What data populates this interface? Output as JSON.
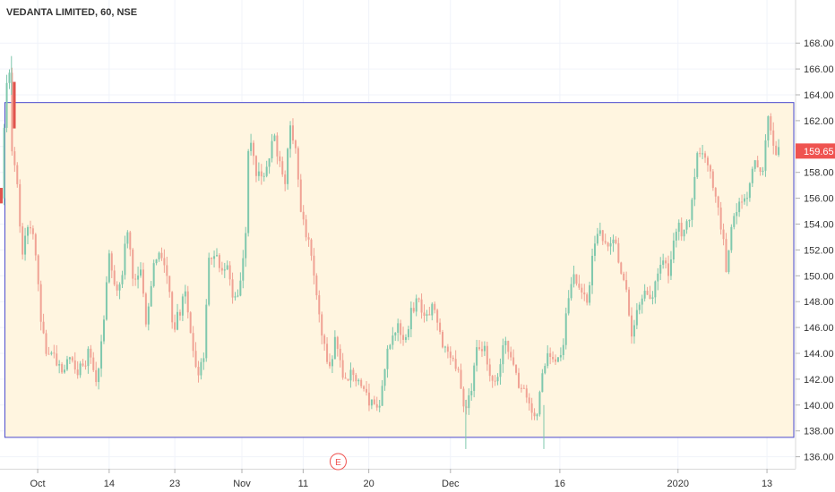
{
  "chart_data": {
    "type": "candlestick",
    "title": "VEDANTA LIMITED, 60, NSE",
    "ylim": [
      135,
      169
    ],
    "y_ticks": [
      136,
      138,
      140,
      142,
      144,
      146,
      148,
      150,
      152,
      154,
      156,
      158,
      160,
      162,
      164,
      166,
      168
    ],
    "y_tick_labels": [
      "136.00",
      "138.00",
      "140.00",
      "142.00",
      "144.00",
      "146.00",
      "148.00",
      "150.00",
      "152.00",
      "154.00",
      "156.00",
      "158.00",
      "160.00",
      "162.00",
      "164.00",
      "166.00",
      "168.00"
    ],
    "x_ticks": [
      {
        "label": "Oct",
        "x": 4.8
      },
      {
        "label": "14",
        "x": 14.6
      },
      {
        "label": "23",
        "x": 23.6
      },
      {
        "label": "Nov",
        "x": 32.8
      },
      {
        "label": "11",
        "x": 41.2
      },
      {
        "label": "20",
        "x": 50.2
      },
      {
        "label": "Dec",
        "x": 61.4
      },
      {
        "label": "16",
        "x": 76.4
      },
      {
        "label": "2020",
        "x": 92.6
      },
      {
        "label": "13",
        "x": 104.8
      }
    ],
    "x_range": [
      0,
      107
    ],
    "grid": true,
    "current_price": 159.65,
    "current_price_label": "159.65",
    "up_color": "#7fc8ad",
    "down_color": "#f0a294",
    "rectangle": {
      "x_start": 0.3,
      "x_end": 107,
      "y_low": 137.5,
      "y_high": 163.4,
      "border": "#4a4acd",
      "fill": "#fff5e0"
    },
    "event_marker": "E",
    "event_x": 46.0,
    "anchors": [
      [
        0.0,
        156.0
      ],
      [
        0.6,
        162.0
      ],
      [
        1.2,
        166.6
      ],
      [
        1.6,
        160.2
      ],
      [
        2.3,
        157.4
      ],
      [
        3.0,
        151.8
      ],
      [
        4.0,
        154.5
      ],
      [
        4.8,
        152.6
      ],
      [
        5.5,
        146.8
      ],
      [
        6.4,
        144.0
      ],
      [
        7.4,
        143.8
      ],
      [
        8.6,
        142.0
      ],
      [
        9.5,
        144.2
      ],
      [
        10.4,
        142.6
      ],
      [
        11.4,
        143.2
      ],
      [
        12.4,
        144.2
      ],
      [
        13.3,
        141.3
      ],
      [
        14.3,
        147.2
      ],
      [
        15.0,
        152.0
      ],
      [
        15.8,
        148.8
      ],
      [
        16.6,
        149.8
      ],
      [
        17.5,
        153.8
      ],
      [
        18.2,
        149.6
      ],
      [
        19.2,
        150.8
      ],
      [
        20.0,
        146.0
      ],
      [
        21.0,
        151.0
      ],
      [
        21.9,
        152.0
      ],
      [
        22.8,
        150.2
      ],
      [
        23.8,
        145.8
      ],
      [
        24.6,
        147.2
      ],
      [
        25.4,
        148.6
      ],
      [
        26.2,
        145.0
      ],
      [
        27.0,
        142.2
      ],
      [
        27.9,
        143.4
      ],
      [
        28.6,
        151.4
      ],
      [
        29.4,
        151.4
      ],
      [
        30.4,
        150.6
      ],
      [
        31.3,
        150.4
      ],
      [
        32.0,
        148.4
      ],
      [
        32.8,
        149.0
      ],
      [
        33.6,
        152.0
      ],
      [
        34.1,
        160.6
      ],
      [
        35.0,
        158.2
      ],
      [
        36.0,
        157.0
      ],
      [
        36.9,
        159.2
      ],
      [
        37.6,
        160.6
      ],
      [
        38.4,
        158.6
      ],
      [
        39.0,
        157.0
      ],
      [
        39.8,
        161.4
      ],
      [
        40.6,
        160.2
      ],
      [
        41.2,
        155.2
      ],
      [
        41.9,
        153.6
      ],
      [
        42.6,
        151.6
      ],
      [
        43.4,
        148.8
      ],
      [
        44.3,
        144.8
      ],
      [
        45.2,
        142.8
      ],
      [
        46.0,
        145.0
      ],
      [
        46.8,
        142.6
      ],
      [
        47.6,
        142.2
      ],
      [
        48.4,
        142.4
      ],
      [
        49.2,
        142.0
      ],
      [
        50.0,
        140.8
      ],
      [
        51.0,
        140.0
      ],
      [
        52.0,
        139.6
      ],
      [
        52.9,
        143.8
      ],
      [
        53.8,
        145.0
      ],
      [
        54.6,
        146.0
      ],
      [
        55.5,
        144.6
      ],
      [
        56.4,
        147.4
      ],
      [
        57.4,
        148.4
      ],
      [
        58.4,
        146.4
      ],
      [
        59.3,
        147.6
      ],
      [
        60.2,
        145.4
      ],
      [
        61.2,
        144.2
      ],
      [
        62.1,
        144.0
      ],
      [
        62.8,
        142.4
      ],
      [
        63.5,
        139.6
      ],
      [
        64.4,
        140.4
      ],
      [
        65.4,
        144.2
      ],
      [
        66.4,
        144.2
      ],
      [
        67.3,
        142.4
      ],
      [
        68.2,
        142.2
      ],
      [
        69.2,
        144.8
      ],
      [
        70.2,
        144.0
      ],
      [
        71.1,
        141.2
      ],
      [
        72.0,
        141.2
      ],
      [
        72.8,
        140.0
      ],
      [
        73.5,
        138.6
      ],
      [
        74.2,
        141.8
      ],
      [
        75.0,
        143.8
      ],
      [
        75.7,
        143.2
      ],
      [
        76.3,
        143.4
      ],
      [
        77.0,
        143.8
      ],
      [
        77.8,
        148.0
      ],
      [
        78.8,
        150.0
      ],
      [
        79.6,
        149.4
      ],
      [
        80.6,
        147.4
      ],
      [
        81.2,
        152.0
      ],
      [
        82.0,
        153.6
      ],
      [
        83.0,
        152.4
      ],
      [
        84.0,
        153.0
      ],
      [
        85.0,
        151.0
      ],
      [
        85.8,
        149.0
      ],
      [
        86.6,
        145.6
      ],
      [
        87.5,
        147.2
      ],
      [
        88.4,
        149.2
      ],
      [
        89.2,
        148.2
      ],
      [
        90.0,
        150.0
      ],
      [
        90.8,
        151.2
      ],
      [
        91.8,
        150.0
      ],
      [
        92.8,
        154.0
      ],
      [
        93.6,
        153.4
      ],
      [
        94.6,
        154.8
      ],
      [
        95.5,
        159.2
      ],
      [
        96.4,
        159.2
      ],
      [
        97.2,
        158.8
      ],
      [
        98.0,
        156.6
      ],
      [
        98.8,
        154.2
      ],
      [
        99.6,
        150.6
      ],
      [
        100.4,
        154.2
      ],
      [
        101.2,
        155.6
      ],
      [
        102.0,
        155.4
      ],
      [
        102.6,
        156.8
      ],
      [
        103.4,
        158.8
      ],
      [
        104.4,
        157.4
      ],
      [
        105.4,
        162.4
      ],
      [
        106.0,
        160.4
      ],
      [
        106.5,
        159.65
      ]
    ]
  }
}
